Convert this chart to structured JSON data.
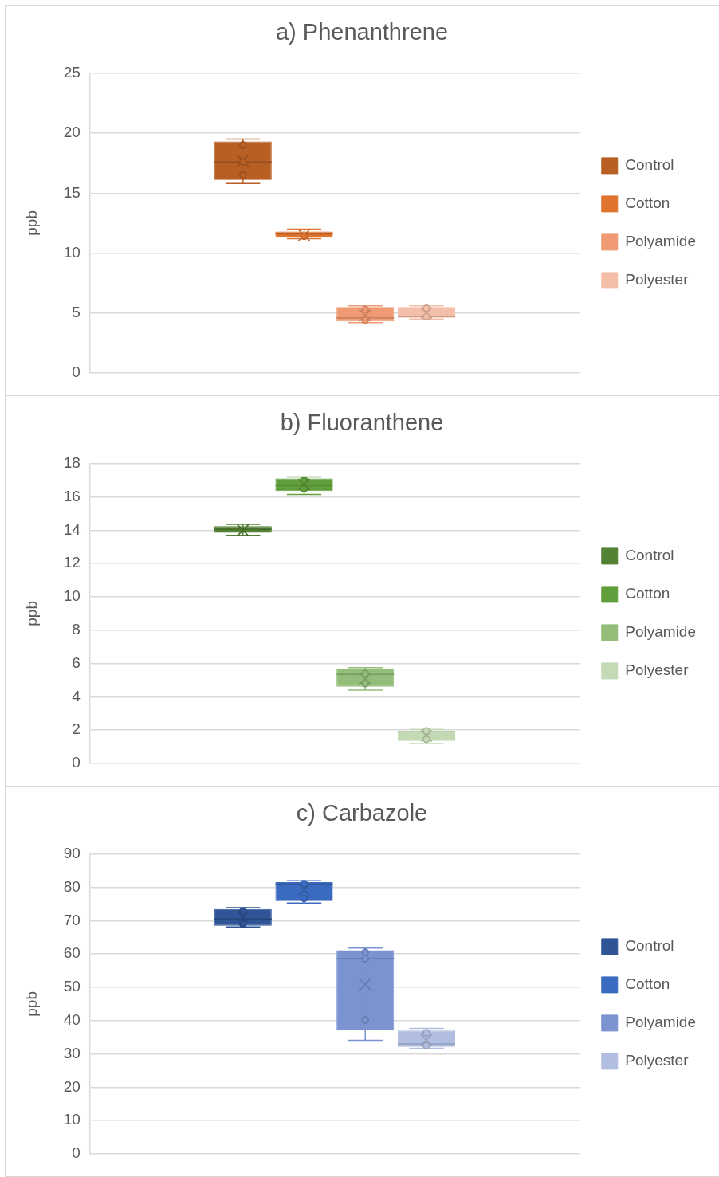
{
  "chart_data": [
    {
      "type": "box",
      "title": "a) Phenanthrene",
      "ylabel": "ppb",
      "categories": [
        null
      ],
      "ylim": [
        0,
        25
      ],
      "yticks": [
        0,
        5,
        10,
        15,
        20,
        25
      ],
      "grid": "y",
      "legend": "right",
      "tick_labels": "y",
      "series": [
        {
          "name": "Control",
          "color": "#b85f24",
          "boxes": [
            {
              "low": 15.8,
              "q1": 16.1,
              "median": 17.6,
              "q3": 19.3,
              "high": 19.5,
              "mean": 17.7,
              "outliers": [
                19.0,
                17.6,
                16.5
              ]
            }
          ]
        },
        {
          "name": "Cotton",
          "color": "#e0732d",
          "boxes": [
            {
              "low": 11.2,
              "q1": 11.3,
              "median": 11.6,
              "q3": 11.8,
              "high": 12.0,
              "mean": 11.5,
              "outliers": [
                11.4
              ]
            }
          ]
        },
        {
          "name": "Polyamide",
          "color": "#f09a73",
          "boxes": [
            {
              "low": 4.2,
              "q1": 4.3,
              "median": 4.6,
              "q3": 5.5,
              "high": 5.6,
              "mean": 4.8,
              "outliers": [
                5.3,
                4.4
              ]
            }
          ]
        },
        {
          "name": "Polyester",
          "color": "#f4bfa8",
          "boxes": [
            {
              "low": 4.5,
              "q1": 4.6,
              "median": 4.7,
              "q3": 5.5,
              "high": 5.6,
              "mean": 5.0,
              "outliers": [
                5.4,
                4.7
              ]
            }
          ]
        }
      ]
    },
    {
      "type": "box",
      "title": "b) Fluoranthene",
      "ylabel": "ppb",
      "categories": [
        null
      ],
      "ylim": [
        0,
        18
      ],
      "yticks": [
        0,
        2,
        4,
        6,
        8,
        10,
        12,
        14,
        16,
        18
      ],
      "grid": "y",
      "legend": "right",
      "tick_labels": "y",
      "series": [
        {
          "name": "Control",
          "color": "#548235",
          "boxes": [
            {
              "low": 13.7,
              "q1": 13.85,
              "median": 14.05,
              "q3": 14.25,
              "high": 14.35,
              "mean": 14.0
            }
          ]
        },
        {
          "name": "Cotton",
          "color": "#5f9e3b",
          "boxes": [
            {
              "low": 16.15,
              "q1": 16.35,
              "median": 16.7,
              "q3": 17.1,
              "high": 17.2,
              "mean": 16.75,
              "outliers": [
                17.0,
                16.5
              ]
            }
          ]
        },
        {
          "name": "Polyamide",
          "color": "#93bd78",
          "boxes": [
            {
              "low": 4.4,
              "q1": 4.6,
              "median": 5.35,
              "q3": 5.7,
              "high": 5.75,
              "mean": 5.1,
              "outliers": [
                5.4,
                4.8
              ]
            }
          ]
        },
        {
          "name": "Polyester",
          "color": "#c3dab5",
          "boxes": [
            {
              "low": 1.2,
              "q1": 1.35,
              "median": 1.9,
              "q3": 1.95,
              "high": 2.05,
              "mean": 1.65,
              "outliers": [
                1.95,
                1.45
              ]
            }
          ]
        }
      ]
    },
    {
      "type": "box",
      "title": "c) Carbazole",
      "ylabel": "ppb",
      "categories": [
        null
      ],
      "ylim": [
        0,
        90
      ],
      "yticks": [
        0,
        10,
        20,
        30,
        40,
        50,
        60,
        70,
        80,
        90
      ],
      "grid": "y",
      "legend": "right",
      "tick_labels": "y",
      "series": [
        {
          "name": "Control",
          "color": "#2f5597",
          "boxes": [
            {
              "low": 68.1,
              "q1": 68.5,
              "median": 70.5,
              "q3": 73.5,
              "high": 73.9,
              "mean": 71.2,
              "outliers": [
                72.9,
                69.0
              ]
            }
          ]
        },
        {
          "name": "Cotton",
          "color": "#3b6bc0",
          "boxes": [
            {
              "low": 75.3,
              "q1": 75.9,
              "median": 81.0,
              "q3": 81.6,
              "high": 82.0,
              "mean": 79.3,
              "outliers": [
                81.1,
                76.7
              ]
            }
          ]
        },
        {
          "name": "Polyamide",
          "color": "#7b93d0",
          "boxes": [
            {
              "low": 34.1,
              "q1": 37.0,
              "median": 58.6,
              "q3": 61.1,
              "high": 61.8,
              "mean": 50.9,
              "outliers": [
                60.5,
                58.6,
                40.2
              ]
            }
          ]
        },
        {
          "name": "Polyester",
          "color": "#b1bee2",
          "boxes": [
            {
              "low": 31.7,
              "q1": 32.1,
              "median": 33.0,
              "q3": 37.0,
              "high": 37.7,
              "mean": 34.2,
              "outliers": [
                36.3,
                32.5
              ]
            }
          ]
        }
      ]
    }
  ]
}
